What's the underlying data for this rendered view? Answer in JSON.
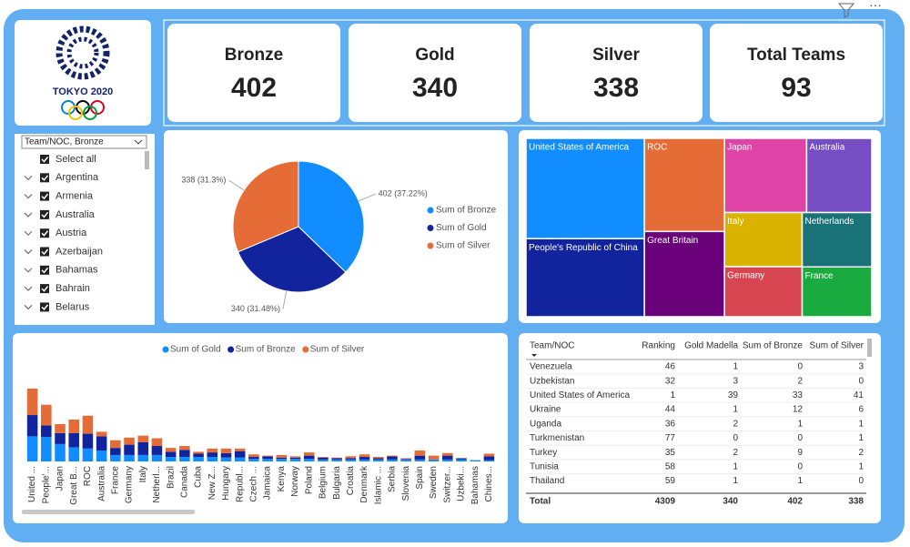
{
  "logo": {
    "text": "TOKYO 2020"
  },
  "cards": [
    {
      "label": "Bronze",
      "value": 402
    },
    {
      "label": "Gold",
      "value": 340
    },
    {
      "label": "Silver",
      "value": 338
    },
    {
      "label": "Total Teams",
      "value": 93
    }
  ],
  "slicer": {
    "header": "Team/NOC, Bronze",
    "items": [
      "Select all",
      "Argentina",
      "Armenia",
      "Australia",
      "Austria",
      "Azerbaijan",
      "Bahamas",
      "Bahrain",
      "Belarus"
    ]
  },
  "chart_data": [
    {
      "type": "pie",
      "categories": [
        "Sum of Bronze",
        "Sum of Gold",
        "Sum of Silver"
      ],
      "values": [
        402,
        340,
        338
      ],
      "value_labels": [
        "402 (37.22%)",
        "340 (31.48%)",
        "338 (31.3%)"
      ],
      "colors": [
        "#118dff",
        "#12239e",
        "#e66c37"
      ]
    },
    {
      "type": "treemap",
      "categories": [
        "United States of America",
        "People's Republic of China",
        "ROC",
        "Great Britain",
        "Japan",
        "Australia",
        "Italy",
        "Germany",
        "Netherlands",
        "France"
      ],
      "values": [
        113,
        88,
        71,
        65,
        58,
        46,
        40,
        37,
        36,
        33
      ],
      "colors": [
        "#118dff",
        "#12239e",
        "#e66c37",
        "#6b007b",
        "#e044a7",
        "#744ec2",
        "#d9b300",
        "#d64550",
        "#197278",
        "#1aab40"
      ]
    },
    {
      "type": "stacked-bar",
      "categories": [
        "United ...",
        "People'...",
        "Japan",
        "Great B...",
        "ROC",
        "Australia",
        "France",
        "Germany",
        "Italy",
        "Netherl...",
        "Brazil",
        "Canada",
        "Cuba",
        "New Z...",
        "Hungary",
        "Republ...",
        "Czech ...",
        "Jamaica",
        "Kenya",
        "Norway",
        "Poland",
        "Belgium",
        "Bulgaria",
        "Croatia",
        "Denmark",
        "Islamic ...",
        "Serbia",
        "Slovenia",
        "Spain",
        "Sweden",
        "Switzer...",
        "Uzbeki...",
        "Bahamas",
        "Chines..."
      ],
      "series": [
        {
          "name": "Sum of Gold",
          "color": "#118dff",
          "values": [
            39,
            38,
            27,
            22,
            20,
            17,
            10,
            10,
            10,
            10,
            7,
            7,
            7,
            7,
            6,
            6,
            4,
            4,
            4,
            4,
            4,
            3,
            3,
            3,
            3,
            3,
            3,
            3,
            3,
            3,
            3,
            3,
            2,
            2
          ]
        },
        {
          "name": "Sum of Bronze",
          "color": "#12239e",
          "values": [
            33,
            18,
            17,
            22,
            23,
            22,
            11,
            16,
            20,
            14,
            8,
            11,
            5,
            7,
            7,
            10,
            3,
            4,
            2,
            2,
            5,
            3,
            2,
            2,
            4,
            2,
            5,
            1,
            6,
            0,
            6,
            2,
            0,
            6
          ]
        },
        {
          "name": "Sum of Silver",
          "color": "#e66c37",
          "values": [
            41,
            32,
            14,
            21,
            28,
            7,
            12,
            11,
            10,
            12,
            6,
            6,
            3,
            6,
            7,
            4,
            4,
            1,
            4,
            2,
            5,
            1,
            1,
            3,
            4,
            2,
            1,
            1,
            8,
            6,
            4,
            0,
            0,
            4
          ]
        }
      ]
    }
  ],
  "table": {
    "columns": [
      "Team/NOC",
      "Ranking",
      "Gold Madella",
      "Sum of Bronze",
      "Sum of Silver"
    ],
    "rows": [
      [
        "Venezuela",
        46,
        1,
        0,
        3
      ],
      [
        "Uzbekistan",
        32,
        3,
        2,
        0
      ],
      [
        "United States of America",
        1,
        39,
        33,
        41
      ],
      [
        "Ukraine",
        44,
        1,
        12,
        6
      ],
      [
        "Uganda",
        36,
        2,
        1,
        1
      ],
      [
        "Turkmenistan",
        77,
        0,
        0,
        1
      ],
      [
        "Turkey",
        35,
        2,
        9,
        2
      ],
      [
        "Tunisia",
        58,
        1,
        0,
        1
      ],
      [
        "Thailand",
        59,
        1,
        1,
        0
      ]
    ],
    "total": [
      "Total",
      4309,
      340,
      402,
      338
    ]
  }
}
